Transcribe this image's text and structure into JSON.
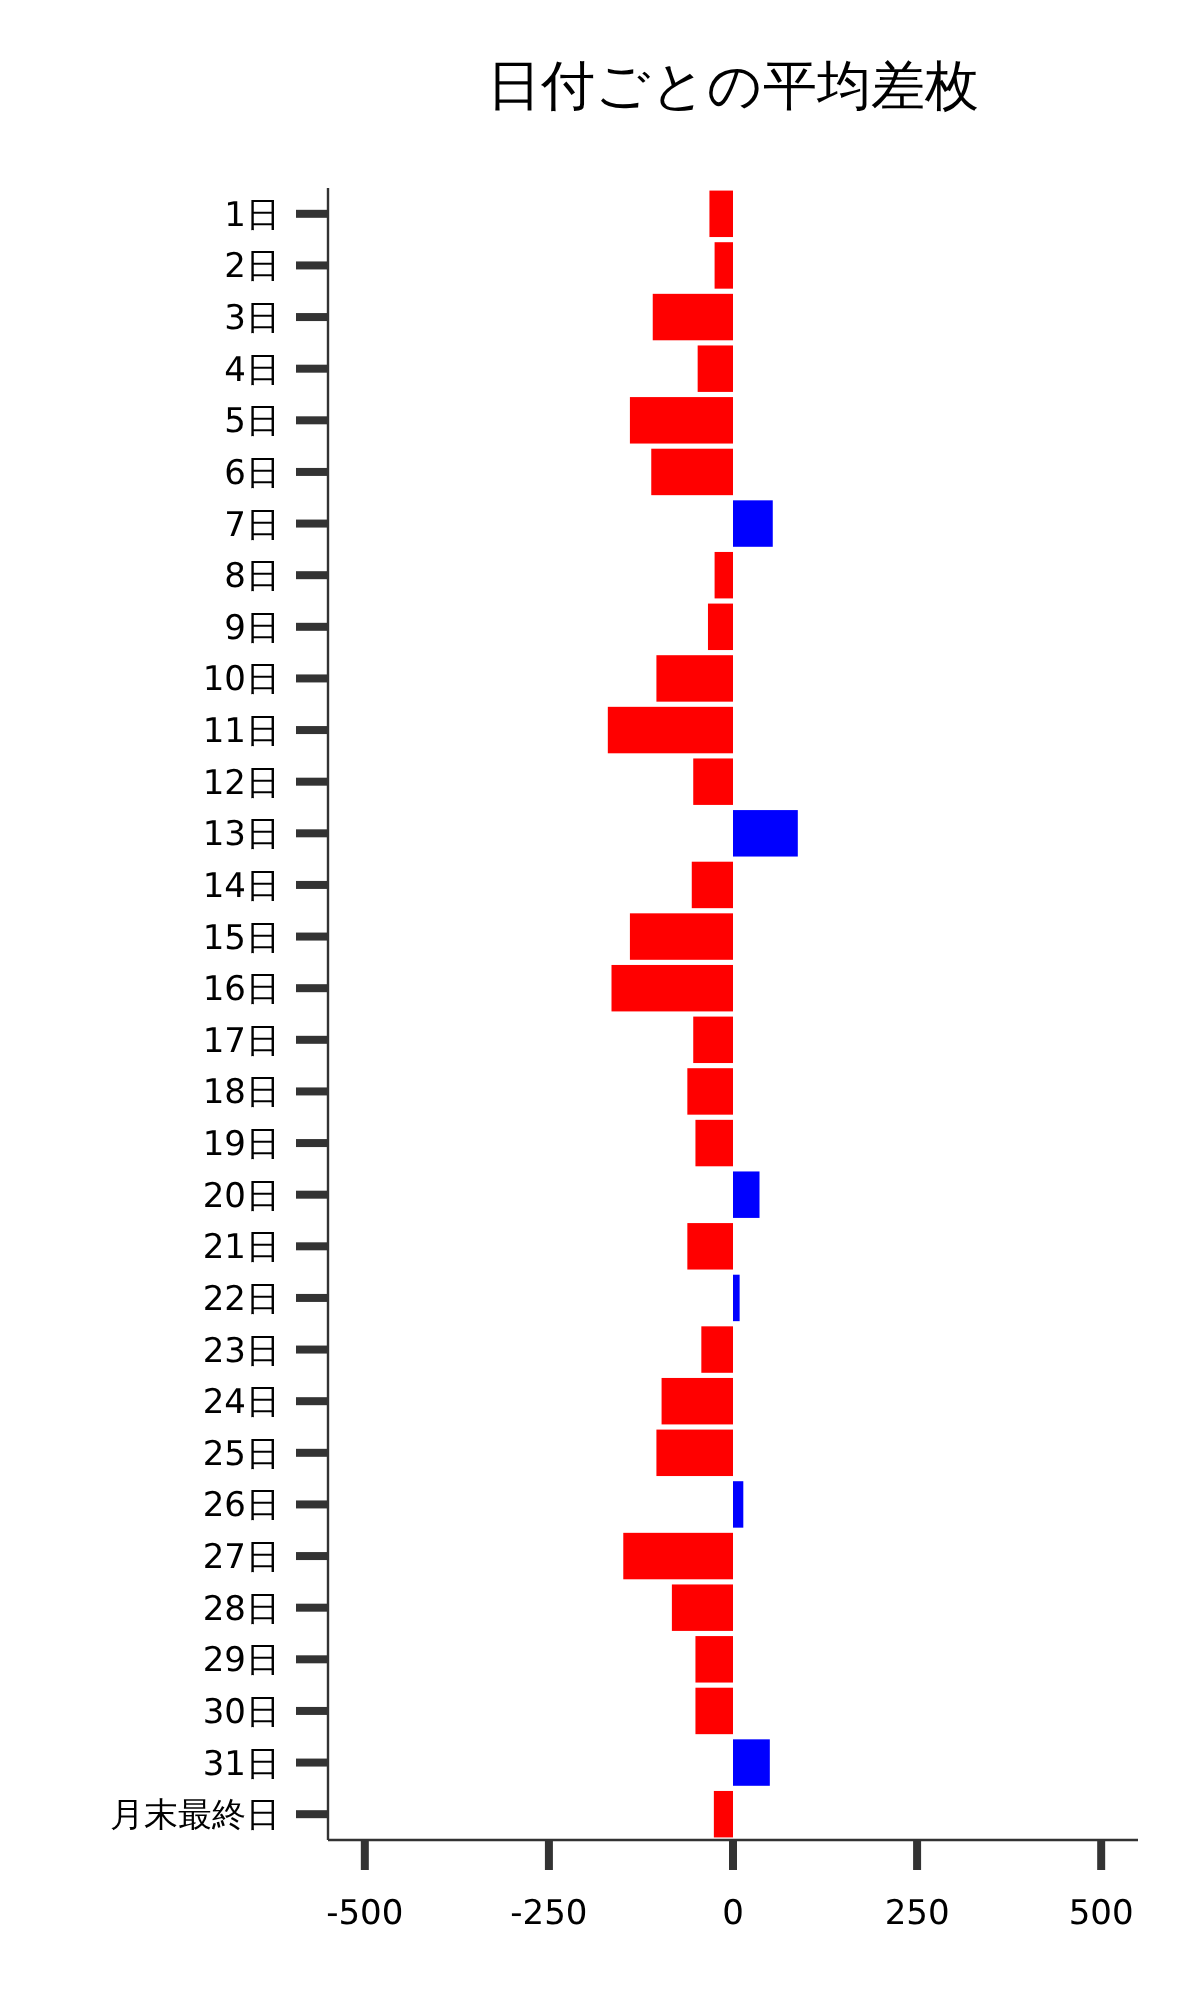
{
  "chart_data": {
    "type": "bar",
    "orientation": "horizontal",
    "title": "日付ごとの平均差枚",
    "categories": [
      "1日",
      "2日",
      "3日",
      "4日",
      "5日",
      "6日",
      "7日",
      "8日",
      "9日",
      "10日",
      "11日",
      "12日",
      "13日",
      "14日",
      "15日",
      "16日",
      "17日",
      "18日",
      "19日",
      "20日",
      "21日",
      "22日",
      "23日",
      "24日",
      "25日",
      "26日",
      "27日",
      "28日",
      "29日",
      "30日",
      "31日",
      "月末最終日"
    ],
    "values": [
      -32,
      -25,
      -109,
      -48,
      -140,
      -111,
      54,
      -25,
      -34,
      -104,
      -170,
      -54,
      88,
      -56,
      -140,
      -165,
      -54,
      -62,
      -51,
      36,
      -62,
      9,
      -43,
      -97,
      -104,
      14,
      -149,
      -83,
      -51,
      -51,
      50,
      -26
    ],
    "colors": [
      "#ff0000",
      "#ff0000",
      "#ff0000",
      "#ff0000",
      "#ff0000",
      "#ff0000",
      "#0000ff",
      "#ff0000",
      "#ff0000",
      "#ff0000",
      "#ff0000",
      "#ff0000",
      "#0000ff",
      "#ff0000",
      "#ff0000",
      "#ff0000",
      "#ff0000",
      "#ff0000",
      "#ff0000",
      "#0000ff",
      "#ff0000",
      "#0000ff",
      "#ff0000",
      "#ff0000",
      "#ff0000",
      "#0000ff",
      "#ff0000",
      "#ff0000",
      "#ff0000",
      "#ff0000",
      "#0000ff",
      "#ff0000"
    ],
    "xlim": [
      -550,
      550
    ],
    "xticks": [
      -500,
      -250,
      0,
      250,
      500
    ],
    "grid": false
  }
}
